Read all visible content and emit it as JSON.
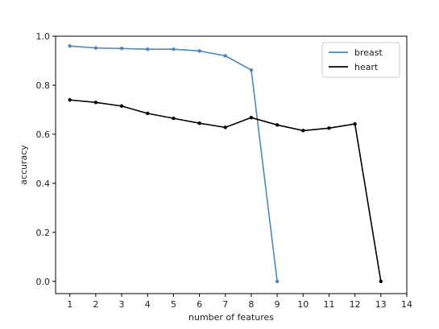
{
  "chart_data": {
    "type": "line",
    "title": "",
    "xlabel": "number of features",
    "ylabel": "accuracy",
    "xlim": [
      0.45,
      14
    ],
    "ylim": [
      -0.05,
      1.0
    ],
    "xticks": [
      1,
      2,
      3,
      4,
      5,
      6,
      7,
      8,
      9,
      10,
      11,
      12,
      13,
      14
    ],
    "yticks": [
      0.0,
      0.2,
      0.4,
      0.6,
      0.8,
      1.0
    ],
    "ytick_labels": [
      "0.0",
      "0.2",
      "0.4",
      "0.6",
      "0.8",
      "1.0"
    ],
    "grid": false,
    "legend_position": "top-right",
    "series": [
      {
        "name": "breast",
        "color": "#4a88bf",
        "x": [
          1,
          2,
          3,
          4,
          5,
          6,
          7,
          8,
          9
        ],
        "y": [
          0.96,
          0.952,
          0.95,
          0.947,
          0.947,
          0.94,
          0.92,
          0.862,
          0.0
        ]
      },
      {
        "name": "heart",
        "color": "#000000",
        "x": [
          1,
          2,
          3,
          4,
          5,
          6,
          7,
          8,
          9,
          10,
          11,
          12,
          13
        ],
        "y": [
          0.74,
          0.73,
          0.715,
          0.685,
          0.665,
          0.645,
          0.628,
          0.668,
          0.638,
          0.615,
          0.625,
          0.642,
          0.0
        ]
      }
    ]
  }
}
